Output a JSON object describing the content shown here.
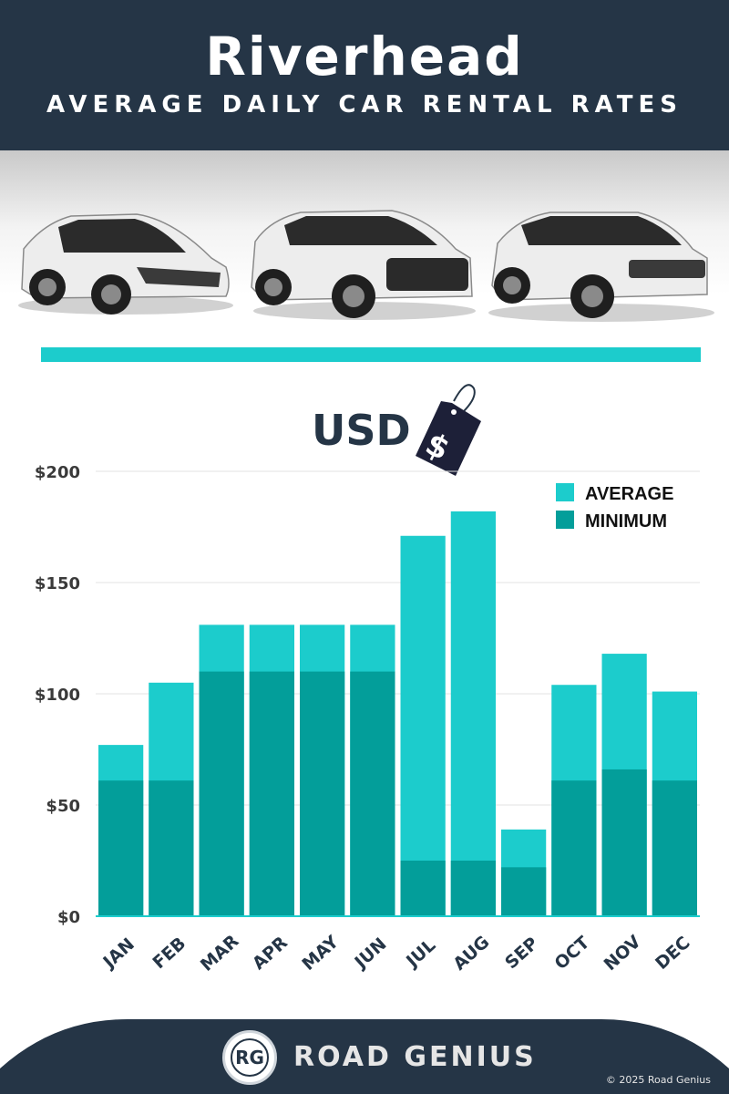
{
  "header": {
    "title": "Riverhead",
    "subtitle": "AVERAGE DAILY CAR RENTAL RATES"
  },
  "currency": {
    "label": "USD",
    "tag_symbol": "$"
  },
  "colors": {
    "header_bg": "#253546",
    "average": "#1ccccc",
    "minimum": "#039e9a",
    "accent": "#1ccccc",
    "axis_text": "#253546",
    "tick_text": "#3a3a3a"
  },
  "chart_data": {
    "type": "bar",
    "stacked_overlay": true,
    "categories": [
      "JAN",
      "FEB",
      "MAR",
      "APR",
      "MAY",
      "JUN",
      "JUL",
      "AUG",
      "SEP",
      "OCT",
      "NOV",
      "DEC"
    ],
    "series": [
      {
        "name": "AVERAGE",
        "values": [
          77,
          105,
          131,
          131,
          131,
          131,
          171,
          182,
          39,
          104,
          118,
          101
        ]
      },
      {
        "name": "MINIMUM",
        "values": [
          61,
          61,
          110,
          110,
          110,
          110,
          25,
          25,
          22,
          61,
          66,
          61
        ]
      }
    ],
    "ylim": [
      0,
      200
    ],
    "yticks": [
      0,
      50,
      100,
      150,
      200
    ],
    "ytick_labels": [
      "$0",
      "$50",
      "$100",
      "$150",
      "$200"
    ],
    "title": "",
    "xlabel": "",
    "ylabel": "",
    "grid": true,
    "legend_position": "top-right"
  },
  "footer": {
    "logo_text": "RG",
    "brand": "ROAD GENIUS",
    "copyright": "© 2025 Road Genius"
  }
}
